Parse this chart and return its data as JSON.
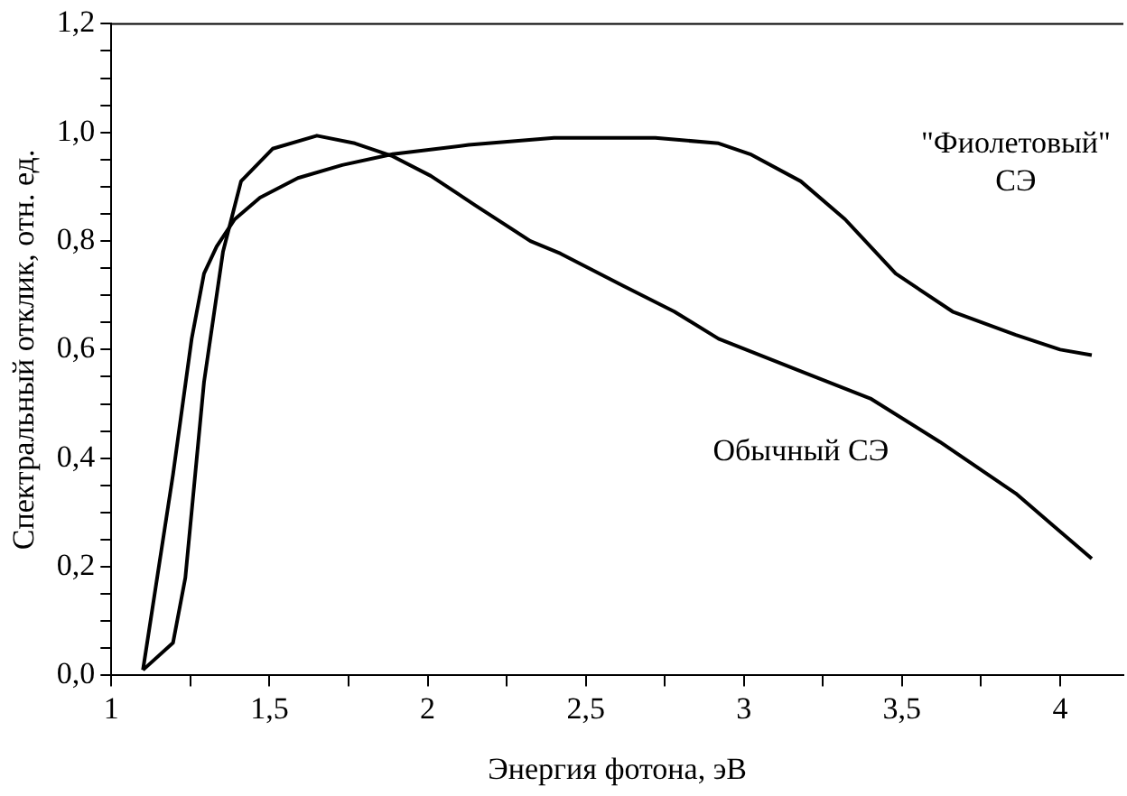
{
  "chart_data": {
    "type": "line",
    "xlabel": "Энергия фотона, эВ",
    "ylabel": "Спектральный отклик, отн. ед.",
    "xlim": [
      1,
      4.2
    ],
    "ylim": [
      0,
      1.2
    ],
    "xticks": [
      {
        "value": 1,
        "label": "1"
      },
      {
        "value": 1.25,
        "label": null
      },
      {
        "value": 1.5,
        "label": "1,5"
      },
      {
        "value": 1.75,
        "label": null
      },
      {
        "value": 2,
        "label": "2"
      },
      {
        "value": 2.25,
        "label": null
      },
      {
        "value": 2.5,
        "label": "2,5"
      },
      {
        "value": 2.75,
        "label": null
      },
      {
        "value": 3,
        "label": "3"
      },
      {
        "value": 3.25,
        "label": null
      },
      {
        "value": 3.5,
        "label": "3,5"
      },
      {
        "value": 3.75,
        "label": null
      },
      {
        "value": 4,
        "label": "4"
      }
    ],
    "yticks": [
      {
        "value": 0,
        "label": "0,0"
      },
      {
        "value": 0.05,
        "label": null
      },
      {
        "value": 0.1,
        "label": null
      },
      {
        "value": 0.15,
        "label": null
      },
      {
        "value": 0.2,
        "label": "0,2"
      },
      {
        "value": 0.25,
        "label": null
      },
      {
        "value": 0.3,
        "label": null
      },
      {
        "value": 0.35,
        "label": null
      },
      {
        "value": 0.4,
        "label": "0,4"
      },
      {
        "value": 0.45,
        "label": null
      },
      {
        "value": 0.5,
        "label": null
      },
      {
        "value": 0.55,
        "label": null
      },
      {
        "value": 0.6,
        "label": "0,6"
      },
      {
        "value": 0.65,
        "label": null
      },
      {
        "value": 0.7,
        "label": null
      },
      {
        "value": 0.75,
        "label": null
      },
      {
        "value": 0.8,
        "label": "0,8"
      },
      {
        "value": 0.85,
        "label": null
      },
      {
        "value": 0.9,
        "label": null
      },
      {
        "value": 0.95,
        "label": null
      },
      {
        "value": 1,
        "label": "1,0"
      },
      {
        "value": 1.05,
        "label": null
      },
      {
        "value": 1.1,
        "label": null
      },
      {
        "value": 1.15,
        "label": null
      },
      {
        "value": 1.2,
        "label": "1,2"
      }
    ],
    "grid": false,
    "legend": false,
    "marker": "none",
    "line_style": "solid",
    "series": [
      {
        "name": "Обычный СЭ",
        "color": "#000000",
        "x": [
          1.1,
          1.195,
          1.234,
          1.293,
          1.353,
          1.41,
          1.51,
          1.65,
          1.77,
          1.89,
          2.01,
          2.15,
          2.325,
          2.42,
          2.62,
          2.78,
          2.92,
          3.18,
          3.4,
          3.62,
          3.86,
          3.98,
          4.1
        ],
        "values": [
          0.01,
          0.06,
          0.18,
          0.54,
          0.78,
          0.91,
          0.97,
          0.994,
          0.98,
          0.956,
          0.92,
          0.866,
          0.8,
          0.777,
          0.717,
          0.67,
          0.62,
          0.56,
          0.51,
          0.43,
          0.335,
          0.275,
          0.215
        ]
      },
      {
        "name": "\"Фиолетовый\"\nСЭ",
        "color": "#000000",
        "x": [
          1.1,
          1.195,
          1.254,
          1.293,
          1.333,
          1.39,
          1.47,
          1.59,
          1.73,
          1.89,
          2.13,
          2.4,
          2.72,
          2.92,
          3.02,
          3.18,
          3.32,
          3.48,
          3.66,
          3.86,
          4.0,
          4.1
        ],
        "values": [
          0.01,
          0.37,
          0.62,
          0.74,
          0.79,
          0.84,
          0.88,
          0.916,
          0.94,
          0.96,
          0.977,
          0.99,
          0.99,
          0.98,
          0.96,
          0.91,
          0.84,
          0.74,
          0.67,
          0.627,
          0.6,
          0.59
        ]
      }
    ]
  }
}
